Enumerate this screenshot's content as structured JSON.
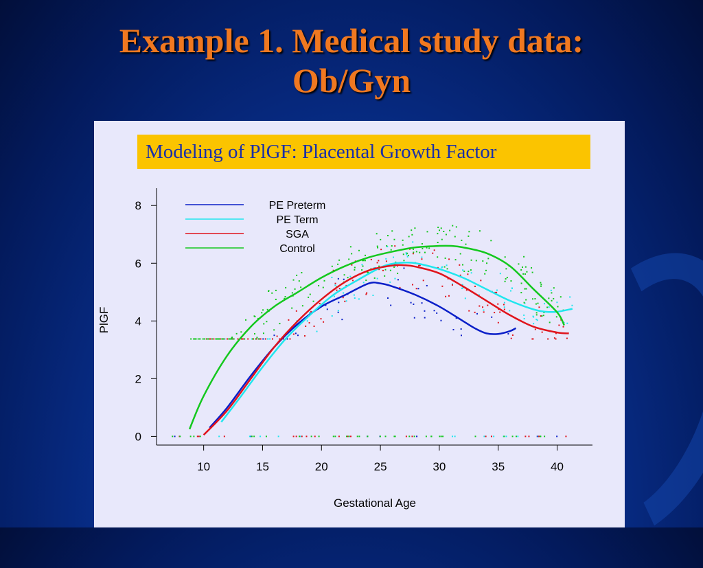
{
  "slide": {
    "title_line1": "Example 1. Medical study data:",
    "title_line2": "Ob/Gyn",
    "banner": "Modeling of PlGF: Placental Growth Factor"
  },
  "colors": {
    "background": "#08308f",
    "title": "#f07820",
    "banner": "#fbc400",
    "banner_text": "#1a2fa8",
    "panel": "#e8e8fb"
  },
  "chart_data": {
    "type": "line",
    "xlabel": "Gestational Age",
    "ylabel": "PlGF",
    "xlim": [
      6,
      43
    ],
    "ylim": [
      -0.3,
      8.6
    ],
    "xticks": [
      10,
      15,
      20,
      25,
      30,
      35,
      40
    ],
    "yticks": [
      0,
      2,
      4,
      6,
      8
    ],
    "grid": false,
    "legend_position": "top-left",
    "series": [
      {
        "name": "PE Preterm",
        "color": "#0a1fc8",
        "x": [
          10.5,
          12,
          14,
          16,
          18,
          20,
          22,
          24,
          25,
          26,
          28,
          30,
          32,
          33,
          34,
          35,
          36,
          36.5
        ],
        "y": [
          0.3,
          1.0,
          2.1,
          3.1,
          3.9,
          4.5,
          4.9,
          5.3,
          5.3,
          5.2,
          4.9,
          4.5,
          4.0,
          3.75,
          3.57,
          3.55,
          3.65,
          3.75
        ]
      },
      {
        "name": "PE Term",
        "color": "#20e6ee",
        "x": [
          11.5,
          13,
          15,
          17,
          19,
          21,
          23,
          25,
          26,
          27,
          28,
          30,
          32,
          34,
          36,
          38,
          39,
          40,
          41.3
        ],
        "y": [
          0.5,
          1.3,
          2.4,
          3.4,
          4.2,
          4.9,
          5.4,
          5.85,
          5.98,
          6.02,
          6.0,
          5.8,
          5.5,
          5.1,
          4.7,
          4.4,
          4.32,
          4.32,
          4.42
        ]
      },
      {
        "name": "SGA",
        "color": "#e0141c",
        "x": [
          10,
          12,
          14,
          16,
          18,
          20,
          22,
          24,
          26,
          27,
          28,
          30,
          32,
          34,
          36,
          38,
          40,
          41
        ],
        "y": [
          0.05,
          0.9,
          2.0,
          3.1,
          4.0,
          4.75,
          5.35,
          5.75,
          5.92,
          5.93,
          5.88,
          5.65,
          5.2,
          4.7,
          4.2,
          3.8,
          3.6,
          3.57
        ]
      },
      {
        "name": "Control",
        "color": "#14c81e",
        "x": [
          8.8,
          10,
          12,
          14,
          16,
          18,
          20,
          22,
          24,
          26,
          28,
          30,
          31,
          32,
          34,
          36,
          38,
          40,
          40.6
        ],
        "y": [
          0.25,
          1.4,
          2.8,
          3.8,
          4.5,
          5.0,
          5.5,
          5.9,
          6.2,
          6.4,
          6.55,
          6.6,
          6.6,
          6.55,
          6.35,
          5.9,
          5.1,
          4.3,
          3.85
        ]
      }
    ]
  }
}
